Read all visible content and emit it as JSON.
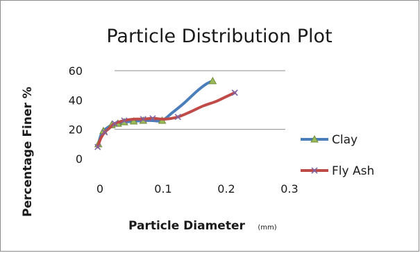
{
  "chart_data": {
    "type": "line",
    "title": "Particle Distribution Plot",
    "xlabel": "Particle Diameter",
    "xlabel_unit": "(mm)",
    "ylabel": "Percentage Finer %",
    "xlim": [
      0,
      0.3
    ],
    "ylim": [
      0,
      60
    ],
    "x_ticks": [
      "0",
      "0.1",
      "0.2",
      "0.3"
    ],
    "y_ticks": [
      "0",
      "20",
      "40",
      "60"
    ],
    "y_gridlines": [
      20,
      60
    ],
    "legend_position": "right",
    "series": [
      {
        "name": "Clay",
        "color": "#4a7ebb",
        "marker": "triangle",
        "marker_color": "#9bbb59",
        "points": [
          [
            0.004,
            10
          ],
          [
            0.008,
            16
          ],
          [
            0.012,
            19
          ],
          [
            0.018,
            21
          ],
          [
            0.025,
            23
          ],
          [
            0.035,
            24
          ],
          [
            0.045,
            25
          ],
          [
            0.06,
            25.5
          ],
          [
            0.075,
            26
          ],
          [
            0.09,
            26
          ],
          [
            0.105,
            26
          ],
          [
            0.12,
            31
          ],
          [
            0.14,
            38
          ],
          [
            0.16,
            46
          ],
          [
            0.175,
            51
          ],
          [
            0.185,
            53
          ]
        ],
        "marked": [
          [
            0.004,
            10
          ],
          [
            0.012,
            19
          ],
          [
            0.025,
            23
          ],
          [
            0.035,
            24
          ],
          [
            0.045,
            25
          ],
          [
            0.06,
            25.5
          ],
          [
            0.075,
            26
          ],
          [
            0.105,
            26
          ],
          [
            0.185,
            53
          ]
        ]
      },
      {
        "name": "Fly Ash",
        "color": "#be4b48",
        "marker": "cross",
        "marker_color": "#8064a2",
        "points": [
          [
            0.003,
            8
          ],
          [
            0.008,
            14
          ],
          [
            0.014,
            18
          ],
          [
            0.022,
            21
          ],
          [
            0.03,
            24
          ],
          [
            0.045,
            26
          ],
          [
            0.06,
            27
          ],
          [
            0.075,
            27
          ],
          [
            0.09,
            27.5
          ],
          [
            0.11,
            27
          ],
          [
            0.13,
            28.5
          ],
          [
            0.15,
            32
          ],
          [
            0.17,
            36
          ],
          [
            0.19,
            39
          ],
          [
            0.205,
            42
          ],
          [
            0.22,
            45
          ]
        ],
        "marked": [
          [
            0.003,
            8
          ],
          [
            0.014,
            18
          ],
          [
            0.03,
            24
          ],
          [
            0.045,
            26
          ],
          [
            0.075,
            27
          ],
          [
            0.09,
            27.5
          ],
          [
            0.13,
            28.5
          ],
          [
            0.22,
            45
          ]
        ]
      }
    ]
  }
}
